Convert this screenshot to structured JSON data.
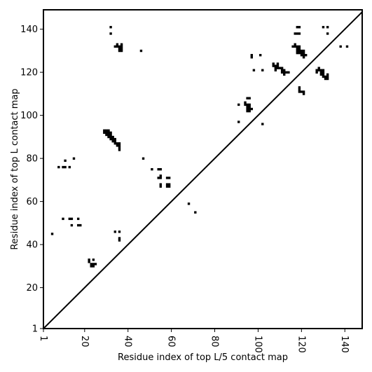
{
  "chart_data": {
    "type": "scatter",
    "xlabel": "Residue index of top L/5 contact map",
    "ylabel": "Residue index of top L contact map",
    "xlim": [
      1,
      148
    ],
    "ylim": [
      1,
      149
    ],
    "x_ticks": [
      {
        "value": 1,
        "label": "1"
      },
      {
        "value": 20,
        "label": "20"
      },
      {
        "value": 40,
        "label": "40"
      },
      {
        "value": 60,
        "label": "60"
      },
      {
        "value": 80,
        "label": "80"
      },
      {
        "value": 100,
        "label": "100"
      },
      {
        "value": 120,
        "label": "120"
      },
      {
        "value": 140,
        "label": "140"
      }
    ],
    "y_ticks": [
      {
        "value": 1,
        "label": "1"
      },
      {
        "value": 20,
        "label": "20"
      },
      {
        "value": 40,
        "label": "40"
      },
      {
        "value": 60,
        "label": "60"
      },
      {
        "value": 80,
        "label": "80"
      },
      {
        "value": 100,
        "label": "100"
      },
      {
        "value": 120,
        "label": "120"
      },
      {
        "value": 140,
        "label": "140"
      }
    ],
    "grid": false,
    "diagonal": true,
    "colors": {
      "marker": "#000000",
      "line": "#000000"
    },
    "points": [
      [
        5,
        45
      ],
      [
        8,
        76
      ],
      [
        10,
        52
      ],
      [
        10,
        76
      ],
      [
        11,
        76
      ],
      [
        11,
        79
      ],
      [
        13,
        52
      ],
      [
        13,
        76
      ],
      [
        14,
        49
      ],
      [
        14,
        52
      ],
      [
        15,
        80
      ],
      [
        17,
        49
      ],
      [
        17,
        52
      ],
      [
        18,
        49
      ],
      [
        22,
        33
      ],
      [
        22,
        32
      ],
      [
        23,
        30
      ],
      [
        23,
        31
      ],
      [
        24,
        30
      ],
      [
        24,
        31
      ],
      [
        24,
        33
      ],
      [
        25,
        31
      ],
      [
        29,
        92
      ],
      [
        29,
        93
      ],
      [
        30,
        91
      ],
      [
        30,
        92
      ],
      [
        30,
        93
      ],
      [
        31,
        90
      ],
      [
        31,
        91
      ],
      [
        31,
        92
      ],
      [
        31,
        93
      ],
      [
        32,
        89
      ],
      [
        32,
        90
      ],
      [
        32,
        91
      ],
      [
        32,
        92
      ],
      [
        33,
        88
      ],
      [
        33,
        89
      ],
      [
        33,
        90
      ],
      [
        34,
        87
      ],
      [
        34,
        88
      ],
      [
        34,
        89
      ],
      [
        35,
        86
      ],
      [
        35,
        87
      ],
      [
        36,
        85
      ],
      [
        36,
        84
      ],
      [
        36,
        86
      ],
      [
        36,
        87
      ],
      [
        32,
        141
      ],
      [
        32,
        138
      ],
      [
        34,
        132
      ],
      [
        35,
        132
      ],
      [
        35,
        133
      ],
      [
        36,
        130
      ],
      [
        36,
        131
      ],
      [
        36,
        132
      ],
      [
        37,
        130
      ],
      [
        37,
        131
      ],
      [
        37,
        132
      ],
      [
        37,
        133
      ],
      [
        46,
        130
      ],
      [
        47,
        80
      ],
      [
        51,
        75
      ],
      [
        54,
        75
      ],
      [
        55,
        75
      ],
      [
        54,
        71
      ],
      [
        55,
        71
      ],
      [
        55,
        72
      ],
      [
        55,
        67
      ],
      [
        55,
        68
      ],
      [
        58,
        67
      ],
      [
        58,
        68
      ],
      [
        58,
        71
      ],
      [
        59,
        67
      ],
      [
        59,
        68
      ],
      [
        59,
        71
      ],
      [
        34,
        46
      ],
      [
        36,
        46
      ],
      [
        36,
        42
      ],
      [
        36,
        43
      ],
      [
        68,
        59
      ],
      [
        71,
        55
      ],
      [
        91,
        105
      ],
      [
        91,
        97
      ],
      [
        94,
        105
      ],
      [
        94,
        106
      ],
      [
        95,
        102
      ],
      [
        95,
        103
      ],
      [
        95,
        104
      ],
      [
        95,
        105
      ],
      [
        95,
        108
      ],
      [
        96,
        102
      ],
      [
        96,
        103
      ],
      [
        96,
        104
      ],
      [
        96,
        105
      ],
      [
        96,
        108
      ],
      [
        97,
        103
      ],
      [
        97,
        127
      ],
      [
        97,
        128
      ],
      [
        98,
        121
      ],
      [
        101,
        128
      ],
      [
        102,
        121
      ],
      [
        102,
        96
      ],
      [
        107,
        123
      ],
      [
        107,
        124
      ],
      [
        108,
        121
      ],
      [
        108,
        122
      ],
      [
        108,
        123
      ],
      [
        109,
        122
      ],
      [
        109,
        123
      ],
      [
        109,
        124
      ],
      [
        110,
        122
      ],
      [
        111,
        120
      ],
      [
        111,
        121
      ],
      [
        111,
        122
      ],
      [
        112,
        119
      ],
      [
        112,
        120
      ],
      [
        112,
        121
      ],
      [
        113,
        120
      ],
      [
        114,
        120
      ],
      [
        116,
        132
      ],
      [
        117,
        132
      ],
      [
        117,
        133
      ],
      [
        117,
        138
      ],
      [
        118,
        129
      ],
      [
        118,
        130
      ],
      [
        118,
        131
      ],
      [
        118,
        132
      ],
      [
        118,
        138
      ],
      [
        118,
        141
      ],
      [
        119,
        111
      ],
      [
        119,
        112
      ],
      [
        119,
        113
      ],
      [
        119,
        129
      ],
      [
        119,
        130
      ],
      [
        119,
        131
      ],
      [
        119,
        132
      ],
      [
        119,
        138
      ],
      [
        119,
        141
      ],
      [
        120,
        111
      ],
      [
        120,
        128
      ],
      [
        120,
        129
      ],
      [
        120,
        130
      ],
      [
        121,
        110
      ],
      [
        121,
        111
      ],
      [
        121,
        127
      ],
      [
        121,
        128
      ],
      [
        121,
        129
      ],
      [
        121,
        130
      ],
      [
        122,
        128
      ],
      [
        127,
        120
      ],
      [
        127,
        121
      ],
      [
        128,
        121
      ],
      [
        128,
        122
      ],
      [
        129,
        119
      ],
      [
        129,
        120
      ],
      [
        129,
        121
      ],
      [
        130,
        118
      ],
      [
        130,
        119
      ],
      [
        130,
        120
      ],
      [
        130,
        121
      ],
      [
        130,
        141
      ],
      [
        131,
        117
      ],
      [
        131,
        118
      ],
      [
        132,
        117
      ],
      [
        132,
        118
      ],
      [
        132,
        119
      ],
      [
        132,
        141
      ],
      [
        132,
        138
      ],
      [
        138,
        132
      ],
      [
        141,
        132
      ]
    ]
  }
}
